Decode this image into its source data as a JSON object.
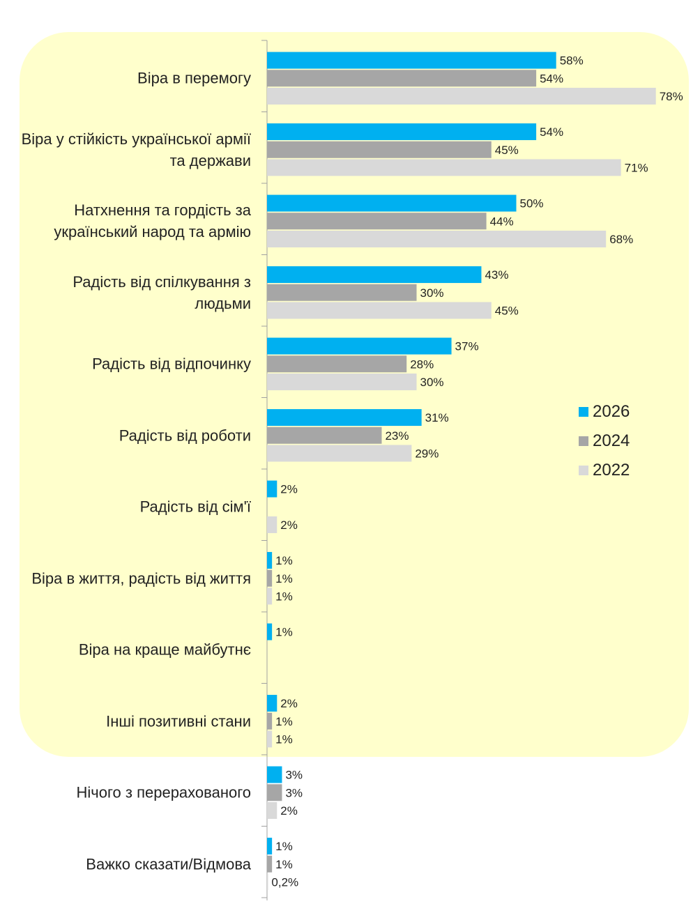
{
  "chart_data": {
    "type": "bar",
    "orientation": "horizontal",
    "categories": [
      "Віра в перемогу",
      "Віра у стійкість української армії та держави",
      "Натхнення та гордість за український народ та армію",
      "Радість від спілкування з людьми",
      "Радість від відпочинку",
      "Радість від роботи",
      "Радість від сім'ї",
      "Віра в життя, радість від життя",
      "Віра на краще майбутнє",
      "Інші позитивні стани",
      "Нічого з перерахованого",
      "Важко сказати/Відмова"
    ],
    "series": [
      {
        "name": "2026",
        "color": "#00b0f0",
        "values": [
          58,
          54,
          50,
          43,
          37,
          31,
          2,
          1,
          1,
          2,
          3,
          1
        ],
        "labels": [
          "58%",
          "54%",
          "50%",
          "43%",
          "37%",
          "31%",
          "2%",
          "1%",
          "1%",
          "2%",
          "3%",
          "1%"
        ]
      },
      {
        "name": "2024",
        "color": "#a6a6a6",
        "values": [
          54,
          45,
          44,
          30,
          28,
          23,
          null,
          1,
          null,
          1,
          3,
          1
        ],
        "labels": [
          "54%",
          "45%",
          "44%",
          "30%",
          "28%",
          "23%",
          "",
          "1%",
          "",
          "1%",
          "3%",
          "1%"
        ]
      },
      {
        "name": "2022",
        "color": "#d9d9d9",
        "values": [
          78,
          71,
          68,
          45,
          30,
          29,
          2,
          1,
          null,
          1,
          2,
          0.2
        ],
        "labels": [
          "78%",
          "71%",
          "68%",
          "45%",
          "30%",
          "29%",
          "2%",
          "1%",
          "",
          "1%",
          "2%",
          "0,2%"
        ]
      }
    ],
    "xlim": [
      0,
      80
    ],
    "legend_position": "right",
    "highlight_background_color": "#ffffcc",
    "highlighted_categories_count": 10
  }
}
